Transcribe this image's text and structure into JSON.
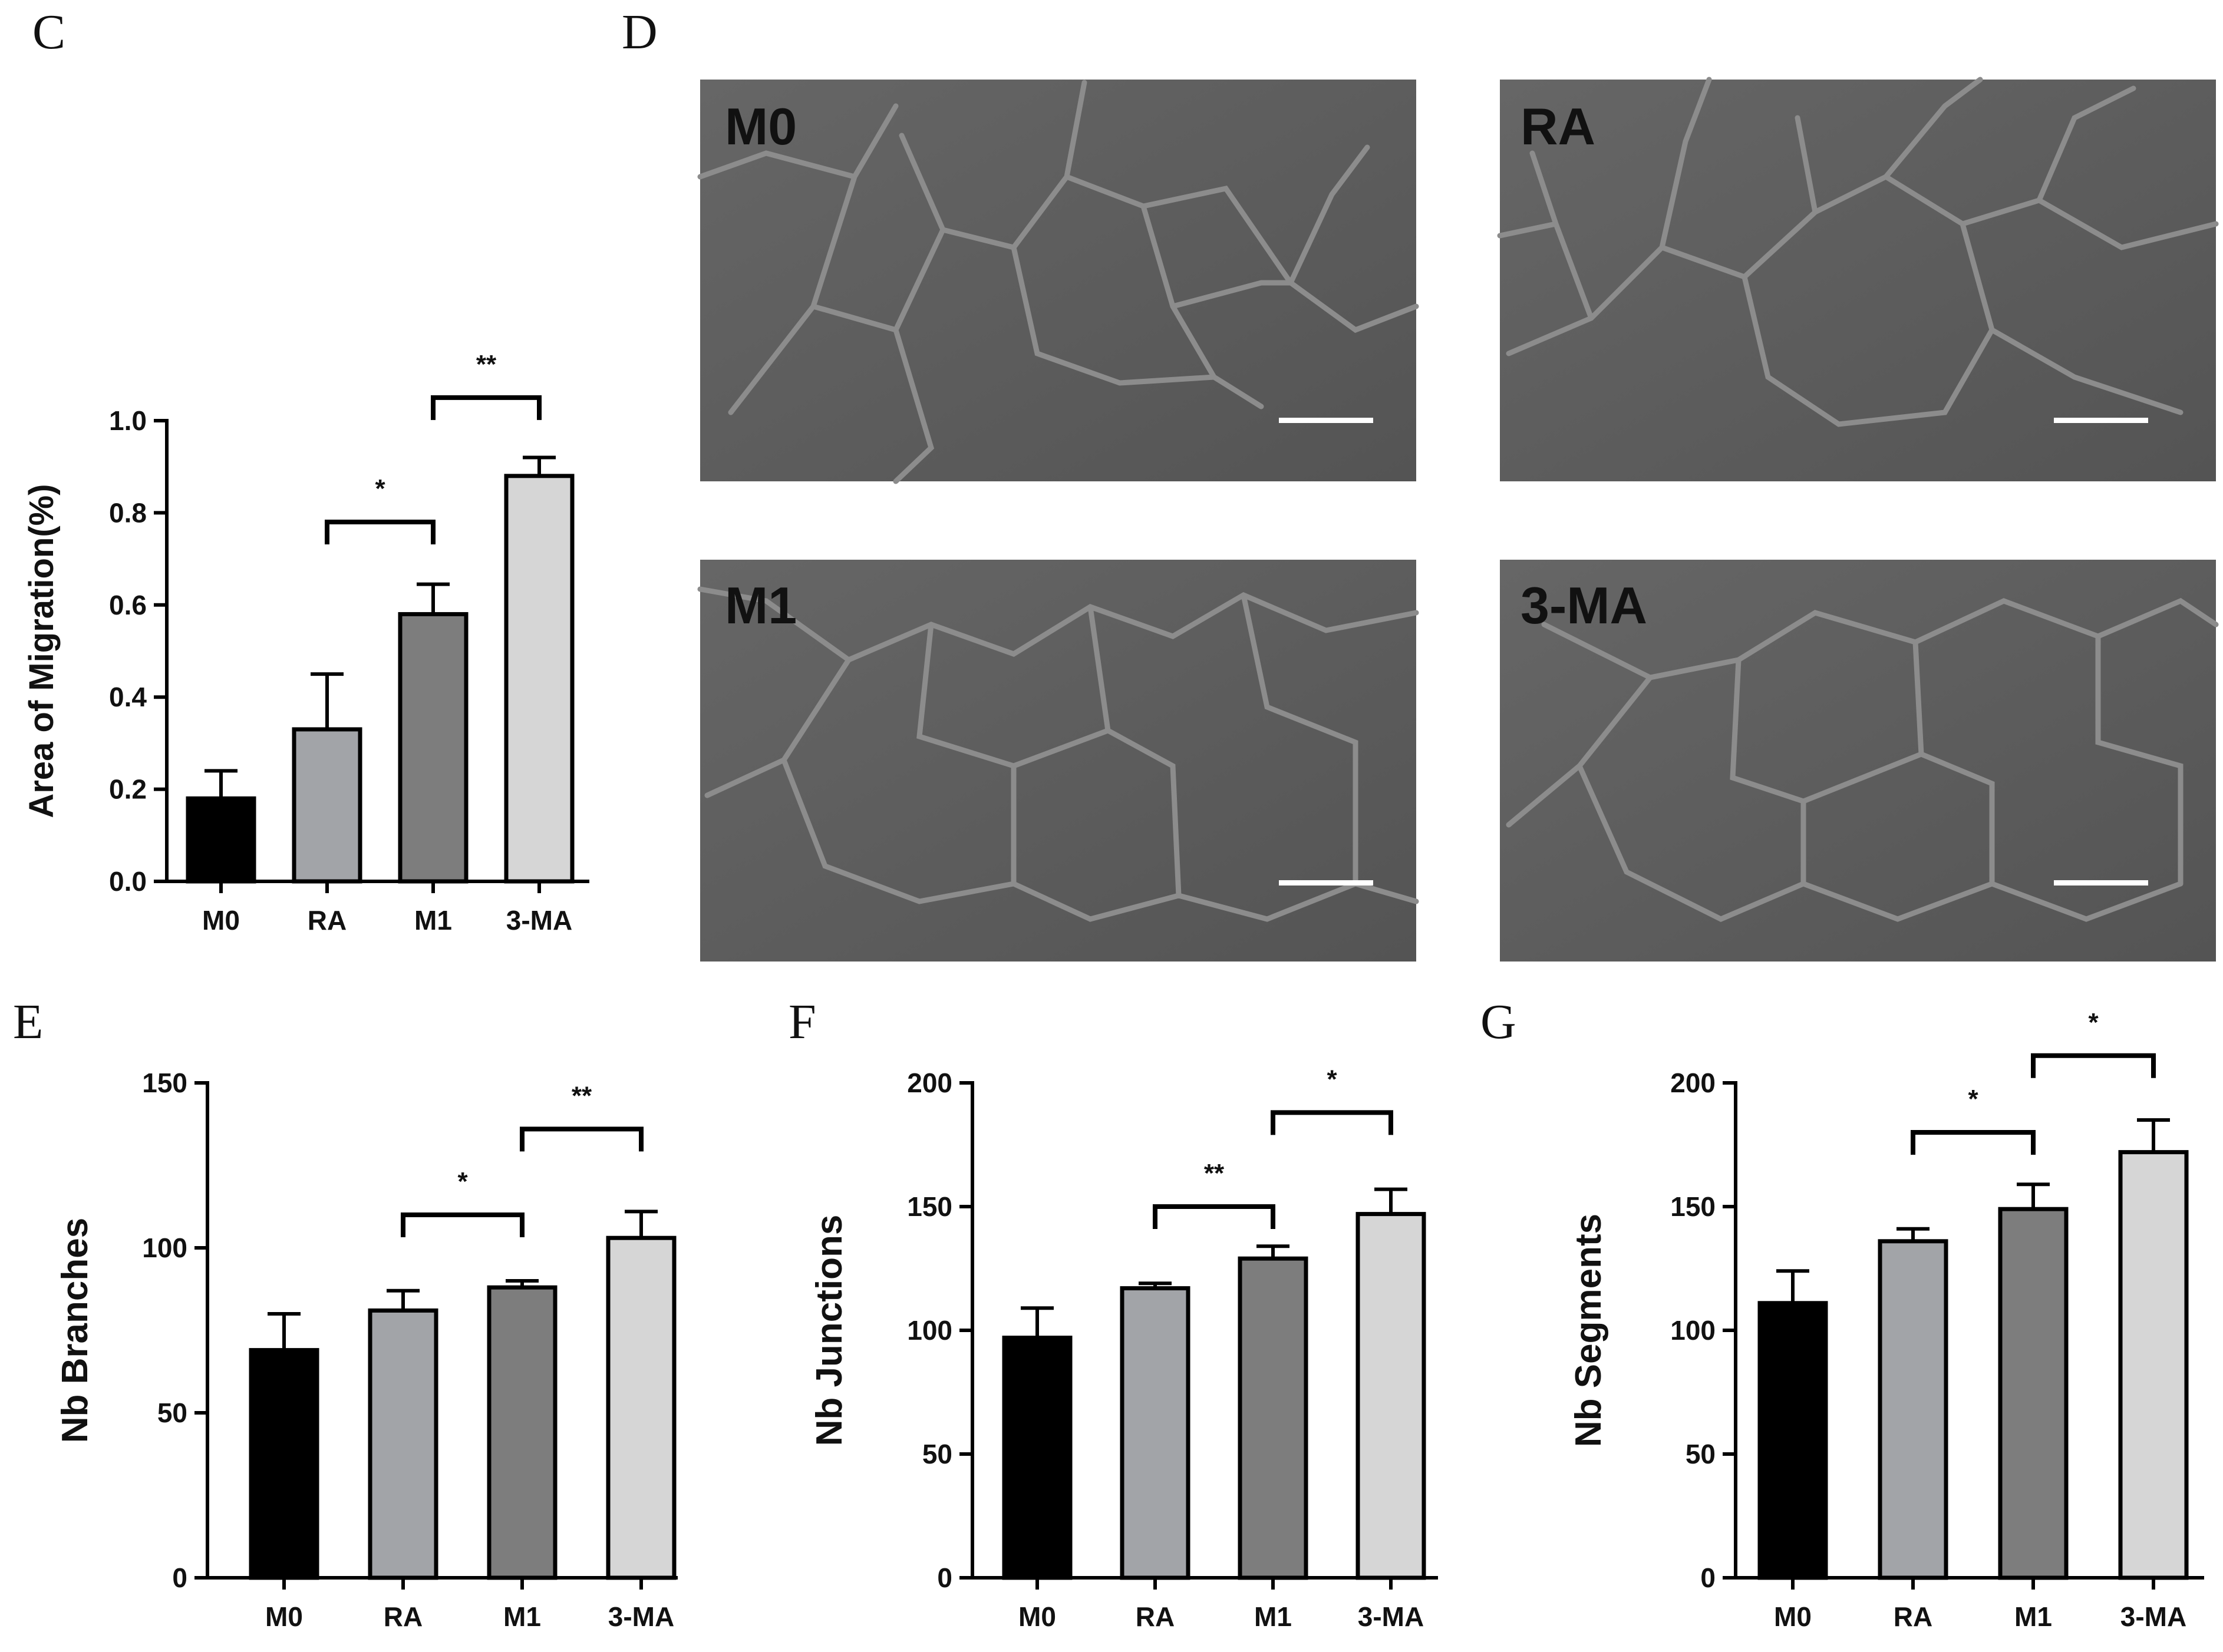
{
  "panels": {
    "C": "C",
    "D": "D",
    "E": "E",
    "F": "F",
    "G": "G"
  },
  "colors": {
    "M0": "#000000",
    "RA": "#a2a4a8",
    "M1": "#7d7d7d",
    "3-MA": "#d6d6d6",
    "micrograph_bg": "#5c5c5c",
    "cell_edge": "#8e8e8e",
    "scale_bar": "#ffffff"
  },
  "micrographs": {
    "panel": "D",
    "images": [
      {
        "label": "M0"
      },
      {
        "label": "RA"
      },
      {
        "label": "M1"
      },
      {
        "label": "3-MA"
      }
    ]
  },
  "chart_data": [
    {
      "panel": "C",
      "type": "bar",
      "ylabel": "Area of Migration(%)",
      "xlabel": "",
      "categories": [
        "M0",
        "RA",
        "M1",
        "3-MA"
      ],
      "values": [
        0.18,
        0.33,
        0.58,
        0.88
      ],
      "errors": [
        0.06,
        0.12,
        0.065,
        0.04
      ],
      "ylim": [
        0,
        1.0
      ],
      "yticks": [
        0.0,
        0.2,
        0.4,
        0.6,
        0.8,
        1.0
      ],
      "ytick_labels": [
        "0.0",
        "0.2",
        "0.4",
        "0.6",
        "0.8",
        "1.0"
      ],
      "significance": [
        {
          "from": 1,
          "to": 2,
          "label": "*",
          "y": 0.78
        },
        {
          "from": 2,
          "to": 3,
          "label": "**",
          "y": 1.05
        }
      ]
    },
    {
      "panel": "E",
      "type": "bar",
      "ylabel": "Nb Branches",
      "xlabel": "",
      "categories": [
        "M0",
        "RA",
        "M1",
        "3-MA"
      ],
      "values": [
        69,
        81,
        88,
        103
      ],
      "errors": [
        11,
        6,
        2,
        8
      ],
      "ylim": [
        0,
        150
      ],
      "yticks": [
        0,
        50,
        100,
        150
      ],
      "ytick_labels": [
        "0",
        "50",
        "100",
        "150"
      ],
      "significance": [
        {
          "from": 1,
          "to": 2,
          "label": "*",
          "y": 110
        },
        {
          "from": 2,
          "to": 3,
          "label": "**",
          "y": 136
        }
      ]
    },
    {
      "panel": "F",
      "type": "bar",
      "ylabel": "Nb Junctions",
      "xlabel": "",
      "categories": [
        "M0",
        "RA",
        "M1",
        "3-MA"
      ],
      "values": [
        97,
        117,
        129,
        147
      ],
      "errors": [
        12,
        2,
        5,
        10
      ],
      "ylim": [
        0,
        200
      ],
      "yticks": [
        0,
        50,
        100,
        150,
        200
      ],
      "ytick_labels": [
        "0",
        "50",
        "100",
        "150",
        "200"
      ],
      "significance": [
        {
          "from": 1,
          "to": 2,
          "label": "**",
          "y": 150
        },
        {
          "from": 2,
          "to": 3,
          "label": "*",
          "y": 188
        }
      ]
    },
    {
      "panel": "G",
      "type": "bar",
      "ylabel": "Nb Segments",
      "xlabel": "",
      "categories": [
        "M0",
        "RA",
        "M1",
        "3-MA"
      ],
      "values": [
        111,
        136,
        149,
        172
      ],
      "errors": [
        13,
        5,
        10,
        13
      ],
      "ylim": [
        0,
        200
      ],
      "yticks": [
        0,
        50,
        100,
        150,
        200
      ],
      "ytick_labels": [
        "0",
        "50",
        "100",
        "150",
        "200"
      ],
      "significance": [
        {
          "from": 1,
          "to": 2,
          "label": "*",
          "y": 180
        },
        {
          "from": 2,
          "to": 3,
          "label": "*",
          "y": 211
        }
      ]
    }
  ]
}
